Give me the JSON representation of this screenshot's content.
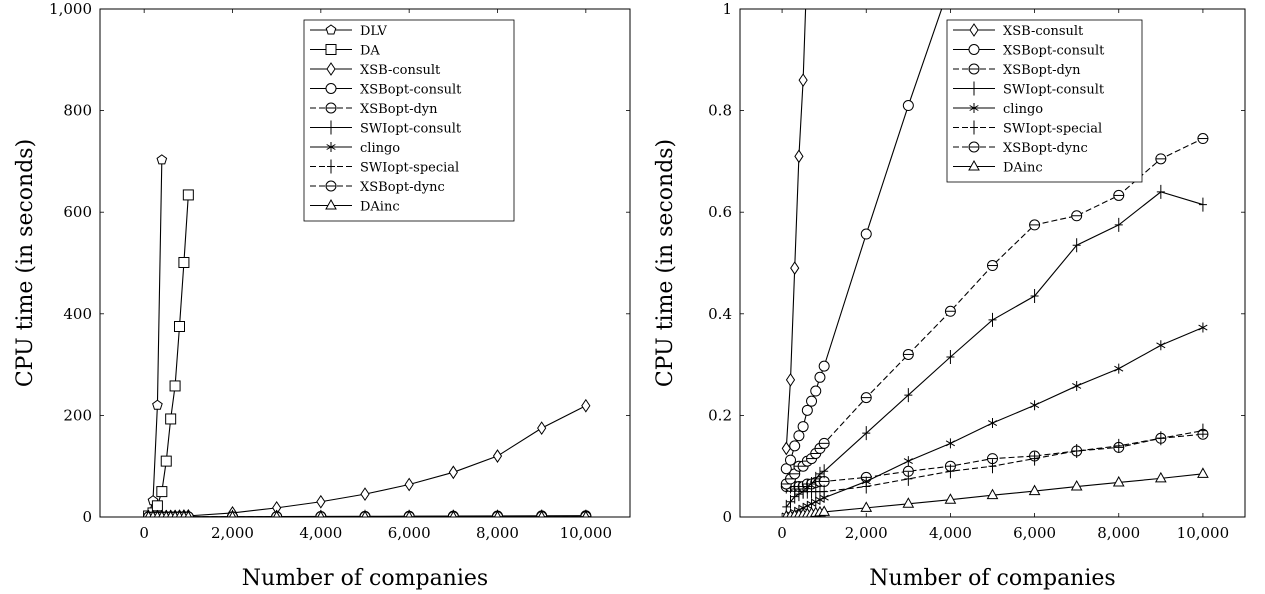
{
  "chart_data": [
    {
      "type": "line",
      "title": "",
      "xlabel": "Number of companies",
      "ylabel": "CPU time (in seconds)",
      "xlim": [
        -1000,
        11000
      ],
      "ylim": [
        0,
        1000
      ],
      "xticks": [
        0,
        2000,
        4000,
        6000,
        8000,
        10000
      ],
      "xtick_labels": [
        "0",
        "2,000",
        "4,000",
        "6,000",
        "8,000",
        "10,000"
      ],
      "yticks": [
        0,
        200,
        400,
        600,
        800,
        1000
      ],
      "ytick_labels": [
        "0",
        "200",
        "400",
        "600",
        "800",
        "1,000"
      ],
      "legend_position": "top-right",
      "series": [
        {
          "name": "DLV",
          "marker": "pentagon",
          "dash": "solid",
          "x": [
            100,
            200,
            300,
            400
          ],
          "y": [
            3,
            32,
            220,
            703
          ]
        },
        {
          "name": "DA",
          "marker": "square",
          "dash": "solid",
          "x": [
            100,
            200,
            300,
            400,
            500,
            600,
            700,
            800,
            900,
            1000
          ],
          "y": [
            2,
            8,
            22,
            50,
            110,
            193,
            258,
            375,
            501,
            634
          ]
        },
        {
          "name": "XSB-consult",
          "marker": "diamond",
          "dash": "solid",
          "x": [
            100,
            200,
            300,
            400,
            500,
            600,
            700,
            800,
            900,
            1000,
            2000,
            3000,
            4000,
            5000,
            6000,
            7000,
            8000,
            9000,
            10000
          ],
          "y": [
            0.13,
            0.27,
            0.49,
            0.71,
            0.86,
            1.1,
            1.3,
            1.6,
            1.9,
            2.2,
            8,
            18,
            30,
            45,
            64,
            88,
            120,
            175,
            219
          ]
        },
        {
          "name": "XSBopt-consult",
          "marker": "circle",
          "dash": "solid",
          "x": [
            100,
            200,
            300,
            400,
            500,
            600,
            700,
            800,
            900,
            1000,
            2000,
            3000,
            4000,
            5000,
            6000,
            7000,
            8000,
            9000,
            10000
          ],
          "y": [
            0.1,
            0.11,
            0.14,
            0.16,
            0.18,
            0.21,
            0.23,
            0.25,
            0.28,
            0.3,
            0.56,
            0.81,
            1.05,
            1.3,
            1.55,
            1.8,
            2.05,
            2.3,
            2.55
          ]
        },
        {
          "name": "XSBopt-dyn",
          "marker": "circle-dash",
          "dash": "dashed",
          "x": [
            100,
            200,
            300,
            400,
            500,
            600,
            700,
            800,
            900,
            1000,
            2000,
            3000,
            4000,
            5000,
            6000,
            7000,
            8000,
            9000,
            10000
          ],
          "y": [
            0.06,
            0.06,
            0.06,
            0.06,
            0.06,
            0.065,
            0.065,
            0.068,
            0.07,
            0.07,
            0.078,
            0.09,
            0.1,
            0.115,
            0.12,
            0.13,
            0.137,
            0.155,
            0.163
          ]
        },
        {
          "name": "SWIopt-consult",
          "marker": "plus",
          "dash": "solid",
          "x": [
            100,
            200,
            300,
            400,
            500,
            600,
            700,
            800,
            900,
            1000,
            2000,
            3000,
            4000,
            5000,
            6000,
            7000,
            8000,
            9000,
            10000
          ],
          "y": [
            0.02,
            0.03,
            0.04,
            0.045,
            0.05,
            0.06,
            0.065,
            0.075,
            0.085,
            0.09,
            0.17,
            0.245,
            0.32,
            0.39,
            0.435,
            0.535,
            0.575,
            0.64,
            0.615
          ]
        },
        {
          "name": "clingo",
          "marker": "star",
          "dash": "solid",
          "x": [
            100,
            200,
            300,
            400,
            500,
            600,
            700,
            800,
            900,
            1000,
            2000,
            3000,
            4000,
            5000,
            6000,
            7000,
            8000,
            9000,
            10000
          ],
          "y": [
            0.003,
            0.006,
            0.01,
            0.014,
            0.018,
            0.022,
            0.026,
            0.03,
            0.034,
            0.038,
            0.07,
            0.11,
            0.145,
            0.185,
            0.22,
            0.258,
            0.292,
            0.338,
            0.373
          ]
        },
        {
          "name": "SWIopt-special",
          "marker": "plus",
          "dash": "dashed",
          "x": [
            100,
            200,
            300,
            400,
            500,
            600,
            700,
            800,
            900,
            1000,
            2000,
            3000,
            4000,
            5000,
            6000,
            7000,
            8000,
            9000,
            10000
          ],
          "y": [
            0.06,
            0.06,
            0.055,
            0.055,
            0.05,
            0.05,
            0.05,
            0.05,
            0.05,
            0.05,
            0.06,
            0.075,
            0.09,
            0.1,
            0.115,
            0.13,
            0.14,
            0.155,
            0.17
          ]
        },
        {
          "name": "XSBopt-dync",
          "marker": "circle-dash",
          "dash": "dashed",
          "x": [
            100,
            200,
            300,
            400,
            500,
            600,
            700,
            800,
            900,
            1000,
            2000,
            3000,
            4000,
            5000,
            6000,
            7000,
            8000,
            9000,
            10000
          ],
          "y": [
            0.065,
            0.075,
            0.085,
            0.1,
            0.1,
            0.11,
            0.115,
            0.125,
            0.135,
            0.145,
            0.235,
            0.32,
            0.405,
            0.495,
            0.575,
            0.593,
            0.633,
            0.705,
            0.745
          ]
        },
        {
          "name": "DAinc",
          "marker": "triangle",
          "dash": "solid",
          "x": [
            100,
            200,
            300,
            400,
            500,
            600,
            700,
            800,
            900,
            1000,
            2000,
            3000,
            4000,
            5000,
            6000,
            7000,
            8000,
            9000,
            10000
          ],
          "y": [
            0.001,
            0.002,
            0.003,
            0.004,
            0.005,
            0.006,
            0.007,
            0.008,
            0.009,
            0.01,
            0.018,
            0.026,
            0.034,
            0.043,
            0.051,
            0.06,
            0.068,
            0.076,
            0.085
          ]
        }
      ]
    },
    {
      "type": "line",
      "title": "",
      "xlabel": "Number of companies",
      "ylabel": "CPU time (in seconds)",
      "xlim": [
        -1000,
        11000
      ],
      "ylim": [
        0,
        1
      ],
      "xticks": [
        0,
        2000,
        4000,
        6000,
        8000,
        10000
      ],
      "xtick_labels": [
        "0",
        "2,000",
        "4,000",
        "6,000",
        "8,000",
        "10,000"
      ],
      "yticks": [
        0,
        0.2,
        0.4,
        0.6,
        0.8,
        1
      ],
      "ytick_labels": [
        "0",
        "0.2",
        "0.4",
        "0.6",
        "0.8",
        "1"
      ],
      "legend_position": "top-right",
      "series": [
        {
          "name": "XSB-consult",
          "marker": "diamond",
          "dash": "solid",
          "x": [
            100,
            200,
            300,
            400,
            500,
            600
          ],
          "y": [
            0.135,
            0.27,
            0.49,
            0.71,
            0.86,
            1.1
          ]
        },
        {
          "name": "XSBopt-consult",
          "marker": "circle",
          "dash": "solid",
          "x": [
            100,
            200,
            300,
            400,
            500,
            600,
            700,
            800,
            900,
            1000,
            2000,
            3000,
            4000
          ],
          "y": [
            0.095,
            0.112,
            0.14,
            0.16,
            0.178,
            0.21,
            0.228,
            0.248,
            0.275,
            0.297,
            0.557,
            0.81,
            1.05
          ]
        },
        {
          "name": "XSBopt-dyn",
          "marker": "circle-dash",
          "dash": "dashed",
          "x": [
            100,
            200,
            300,
            400,
            500,
            600,
            700,
            800,
            900,
            1000,
            2000,
            3000,
            4000,
            5000,
            6000,
            7000,
            8000,
            9000,
            10000
          ],
          "y": [
            0.06,
            0.06,
            0.06,
            0.06,
            0.06,
            0.065,
            0.065,
            0.068,
            0.07,
            0.07,
            0.078,
            0.09,
            0.1,
            0.115,
            0.12,
            0.13,
            0.137,
            0.155,
            0.163
          ]
        },
        {
          "name": "SWIopt-consult",
          "marker": "plus",
          "dash": "solid",
          "x": [
            100,
            200,
            300,
            400,
            500,
            600,
            700,
            800,
            900,
            1000,
            2000,
            3000,
            4000,
            5000,
            6000,
            7000,
            8000,
            9000,
            10000
          ],
          "y": [
            0.02,
            0.03,
            0.04,
            0.045,
            0.05,
            0.06,
            0.065,
            0.075,
            0.085,
            0.09,
            0.165,
            0.24,
            0.315,
            0.388,
            0.435,
            0.535,
            0.575,
            0.64,
            0.615
          ]
        },
        {
          "name": "clingo",
          "marker": "star",
          "dash": "solid",
          "x": [
            100,
            200,
            300,
            400,
            500,
            600,
            700,
            800,
            900,
            1000,
            2000,
            3000,
            4000,
            5000,
            6000,
            7000,
            8000,
            9000,
            10000
          ],
          "y": [
            0.003,
            0.006,
            0.01,
            0.014,
            0.018,
            0.022,
            0.026,
            0.03,
            0.034,
            0.038,
            0.07,
            0.11,
            0.145,
            0.185,
            0.22,
            0.258,
            0.292,
            0.338,
            0.373
          ]
        },
        {
          "name": "SWIopt-special",
          "marker": "plus",
          "dash": "dashed",
          "x": [
            100,
            200,
            300,
            400,
            500,
            600,
            700,
            800,
            900,
            1000,
            2000,
            3000,
            4000,
            5000,
            6000,
            7000,
            8000,
            9000,
            10000
          ],
          "y": [
            0.06,
            0.06,
            0.055,
            0.055,
            0.05,
            0.05,
            0.05,
            0.05,
            0.05,
            0.05,
            0.06,
            0.075,
            0.09,
            0.1,
            0.115,
            0.13,
            0.14,
            0.155,
            0.17
          ]
        },
        {
          "name": "XSBopt-dync",
          "marker": "circle-dash",
          "dash": "dashed",
          "x": [
            100,
            200,
            300,
            400,
            500,
            600,
            700,
            800,
            900,
            1000,
            2000,
            3000,
            4000,
            5000,
            6000,
            7000,
            8000,
            9000,
            10000
          ],
          "y": [
            0.065,
            0.075,
            0.085,
            0.1,
            0.1,
            0.11,
            0.115,
            0.125,
            0.135,
            0.145,
            0.235,
            0.32,
            0.405,
            0.495,
            0.575,
            0.593,
            0.633,
            0.705,
            0.745
          ]
        },
        {
          "name": "DAinc",
          "marker": "triangle",
          "dash": "solid",
          "x": [
            100,
            200,
            300,
            400,
            500,
            600,
            700,
            800,
            900,
            1000,
            2000,
            3000,
            4000,
            5000,
            6000,
            7000,
            8000,
            9000,
            10000
          ],
          "y": [
            0.001,
            0.002,
            0.003,
            0.004,
            0.005,
            0.006,
            0.007,
            0.008,
            0.009,
            0.01,
            0.018,
            0.026,
            0.034,
            0.043,
            0.051,
            0.06,
            0.068,
            0.076,
            0.085
          ]
        }
      ]
    }
  ]
}
